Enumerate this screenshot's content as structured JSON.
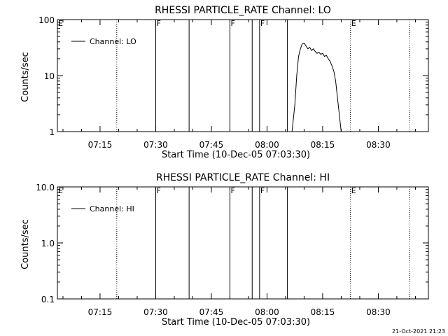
{
  "chart_data": [
    {
      "type": "line",
      "title": "RHESSI PARTICLE_RATE Channel: LO",
      "xlabel": "Start Time (10-Dec-05 07:03:30)",
      "ylabel": "Counts/sec",
      "y_scale": "log",
      "ylim": [
        1,
        100
      ],
      "y_ticks": [
        1,
        10,
        100
      ],
      "y_tick_labels": [
        "1",
        "10",
        "100"
      ],
      "xlim": [
        "07:03:30",
        "08:43:30"
      ],
      "x_ticks": [
        "07:15",
        "07:30",
        "07:45",
        "08:00",
        "08:15",
        "08:30"
      ],
      "legend": {
        "label": "Channel: LO",
        "placement": "top-left"
      },
      "series": [
        {
          "name": "Channel: LO",
          "x": [
            "08:06:45",
            "08:07:30",
            "08:08:00",
            "08:08:30",
            "08:09:00",
            "08:09:30",
            "08:10:00",
            "08:10:30",
            "08:11:00",
            "08:11:30",
            "08:12:00",
            "08:12:30",
            "08:13:00",
            "08:13:30",
            "08:14:00",
            "08:14:30",
            "08:15:00",
            "08:15:30",
            "08:16:00",
            "08:16:30",
            "08:17:00",
            "08:17:30",
            "08:18:00",
            "08:18:30",
            "08:19:00",
            "08:19:30",
            "08:20:00"
          ],
          "y": [
            1,
            3,
            10,
            22,
            30,
            37,
            38,
            34,
            30,
            32,
            28,
            30,
            27,
            25,
            26,
            24,
            25,
            22,
            23,
            20,
            18,
            15,
            12,
            8,
            4,
            2,
            1
          ]
        }
      ],
      "markers": [
        {
          "time": "07:03:30",
          "label": "E",
          "style": "dotted"
        },
        {
          "time": "07:19:30",
          "label": "",
          "style": "dotted"
        },
        {
          "time": "07:30:00",
          "label": "F",
          "style": "solid"
        },
        {
          "time": "07:39:00",
          "label": "",
          "style": "solid"
        },
        {
          "time": "07:50:00",
          "label": "F",
          "style": "solid"
        },
        {
          "time": "07:56:00",
          "label": "",
          "style": "solid"
        },
        {
          "time": "07:58:00",
          "label": "F",
          "style": "solid"
        },
        {
          "time": "08:05:30",
          "label": "",
          "style": "solid"
        },
        {
          "time": "08:22:30",
          "label": "E",
          "style": "dotted"
        },
        {
          "time": "08:38:30",
          "label": "",
          "style": "dotted"
        }
      ]
    },
    {
      "type": "line",
      "title": "RHESSI PARTICLE_RATE Channel: HI",
      "xlabel": "Start Time (10-Dec-05 07:03:30)",
      "ylabel": "Counts/sec",
      "y_scale": "log",
      "ylim": [
        0.1,
        10
      ],
      "y_ticks": [
        0.1,
        1,
        10
      ],
      "y_tick_labels": [
        "0.1",
        "1.0",
        "10.0"
      ],
      "xlim": [
        "07:03:30",
        "08:43:30"
      ],
      "x_ticks": [
        "07:15",
        "07:30",
        "07:45",
        "08:00",
        "08:15",
        "08:30"
      ],
      "legend": {
        "label": "Channel: HI",
        "placement": "top-left"
      },
      "series": [
        {
          "name": "Channel: HI",
          "x": [],
          "y": []
        }
      ],
      "markers": [
        {
          "time": "07:03:30",
          "label": "E",
          "style": "dotted"
        },
        {
          "time": "07:19:30",
          "label": "",
          "style": "dotted"
        },
        {
          "time": "07:30:00",
          "label": "F",
          "style": "solid"
        },
        {
          "time": "07:39:00",
          "label": "",
          "style": "solid"
        },
        {
          "time": "07:50:00",
          "label": "F",
          "style": "solid"
        },
        {
          "time": "07:56:00",
          "label": "",
          "style": "solid"
        },
        {
          "time": "07:58:00",
          "label": "F",
          "style": "solid"
        },
        {
          "time": "08:05:30",
          "label": "",
          "style": "solid"
        },
        {
          "time": "08:22:30",
          "label": "E",
          "style": "dotted"
        },
        {
          "time": "08:38:30",
          "label": "",
          "style": "dotted"
        }
      ]
    }
  ],
  "footer": {
    "timestamp": "21-Oct-2021 21:23"
  },
  "colors": {
    "background": "#ffffff",
    "foreground": "#000000"
  }
}
